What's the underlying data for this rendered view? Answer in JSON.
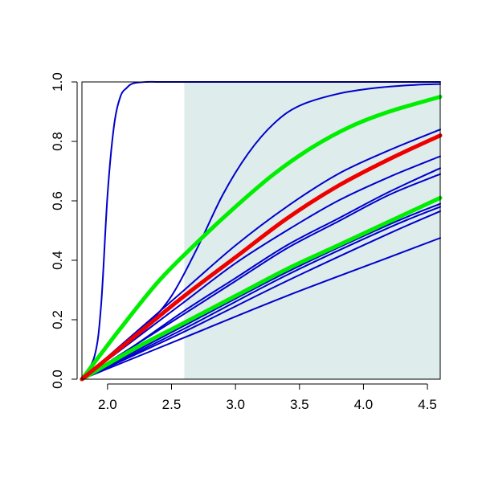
{
  "chart_data": {
    "type": "line",
    "title": "",
    "xlabel": "",
    "ylabel": "",
    "xlim": [
      1.8,
      4.6
    ],
    "ylim": [
      0.0,
      1.0
    ],
    "x_ticks": [
      2.0,
      2.5,
      3.0,
      3.5,
      4.0,
      4.5
    ],
    "x_tick_labels": [
      "2.0",
      "2.5",
      "3.0",
      "3.5",
      "4.0",
      "4.5"
    ],
    "y_ticks": [
      0.0,
      0.2,
      0.4,
      0.6,
      0.8,
      1.0
    ],
    "y_tick_labels": [
      "0.0",
      "0.2",
      "0.4",
      "0.6",
      "0.8",
      "1.0"
    ],
    "shaded_region": {
      "x_from": 2.6,
      "x_to": 4.6,
      "color": "#deeceb"
    },
    "grid": false,
    "legend": "none",
    "colors": {
      "blue": "#0000cc",
      "green": "#00ee00",
      "red": "#ee0000"
    },
    "series": [
      {
        "color": "#0000cc",
        "width": 2,
        "x": [
          1.8,
          1.9,
          1.95,
          2.0,
          2.05,
          2.1,
          2.15,
          2.2,
          2.3,
          2.4,
          2.6,
          4.6
        ],
        "y": [
          0.0,
          0.08,
          0.25,
          0.62,
          0.85,
          0.95,
          0.98,
          0.995,
          1.0,
          1.0,
          1.0,
          1.0
        ]
      },
      {
        "color": "#0000cc",
        "width": 2,
        "x": [
          1.8,
          2.0,
          2.3,
          2.5,
          2.7,
          2.9,
          3.1,
          3.3,
          3.5,
          3.8,
          4.1,
          4.4,
          4.6
        ],
        "y": [
          0.0,
          0.07,
          0.18,
          0.28,
          0.44,
          0.62,
          0.76,
          0.86,
          0.92,
          0.96,
          0.98,
          0.99,
          0.993
        ]
      },
      {
        "color": "#0000cc",
        "width": 2,
        "x": [
          1.8,
          2.2,
          2.6,
          3.0,
          3.4,
          3.8,
          4.2,
          4.6
        ],
        "y": [
          0.0,
          0.15,
          0.3,
          0.45,
          0.58,
          0.69,
          0.77,
          0.84
        ]
      },
      {
        "color": "#0000cc",
        "width": 2,
        "x": [
          1.8,
          2.2,
          2.6,
          3.0,
          3.4,
          3.8,
          4.2,
          4.6
        ],
        "y": [
          0.0,
          0.13,
          0.26,
          0.39,
          0.5,
          0.6,
          0.68,
          0.75
        ]
      },
      {
        "color": "#0000cc",
        "width": 2,
        "x": [
          1.8,
          2.2,
          2.6,
          3.0,
          3.4,
          3.8,
          4.2,
          4.6
        ],
        "y": [
          0.0,
          0.11,
          0.23,
          0.34,
          0.45,
          0.54,
          0.63,
          0.71
        ]
      },
      {
        "color": "#0000cc",
        "width": 2,
        "x": [
          1.8,
          2.2,
          2.6,
          3.0,
          3.4,
          3.8,
          4.2,
          4.6
        ],
        "y": [
          0.0,
          0.11,
          0.22,
          0.33,
          0.44,
          0.53,
          0.62,
          0.69
        ]
      },
      {
        "color": "#0000cc",
        "width": 2,
        "x": [
          1.8,
          2.6,
          3.4,
          4.2,
          4.6
        ],
        "y": [
          0.0,
          0.18,
          0.36,
          0.52,
          0.59
        ]
      },
      {
        "color": "#0000cc",
        "width": 2,
        "x": [
          1.8,
          2.6,
          3.4,
          4.2,
          4.6
        ],
        "y": [
          0.0,
          0.17,
          0.35,
          0.51,
          0.58
        ]
      },
      {
        "color": "#0000cc",
        "width": 2,
        "x": [
          1.8,
          2.6,
          3.4,
          4.2,
          4.6
        ],
        "y": [
          0.0,
          0.16,
          0.33,
          0.49,
          0.565
        ]
      },
      {
        "color": "#0000cc",
        "width": 2,
        "x": [
          1.8,
          2.6,
          3.4,
          4.2,
          4.6
        ],
        "y": [
          0.0,
          0.14,
          0.28,
          0.41,
          0.475
        ]
      },
      {
        "color": "#00ee00",
        "width": 5,
        "x": [
          1.8,
          2.1,
          2.4,
          2.7,
          3.0,
          3.3,
          3.6,
          3.9,
          4.2,
          4.6
        ],
        "y": [
          0.0,
          0.17,
          0.33,
          0.46,
          0.58,
          0.69,
          0.78,
          0.85,
          0.9,
          0.95
        ]
      },
      {
        "color": "#00ee00",
        "width": 5,
        "x": [
          1.8,
          2.2,
          2.6,
          3.0,
          3.4,
          3.8,
          4.2,
          4.6
        ],
        "y": [
          0.0,
          0.1,
          0.19,
          0.28,
          0.37,
          0.45,
          0.53,
          0.61
        ]
      },
      {
        "color": "#ee0000",
        "width": 5,
        "x": [
          1.8,
          2.2,
          2.6,
          3.0,
          3.4,
          3.8,
          4.2,
          4.6
        ],
        "y": [
          0.0,
          0.14,
          0.28,
          0.41,
          0.54,
          0.65,
          0.74,
          0.82
        ]
      }
    ]
  }
}
